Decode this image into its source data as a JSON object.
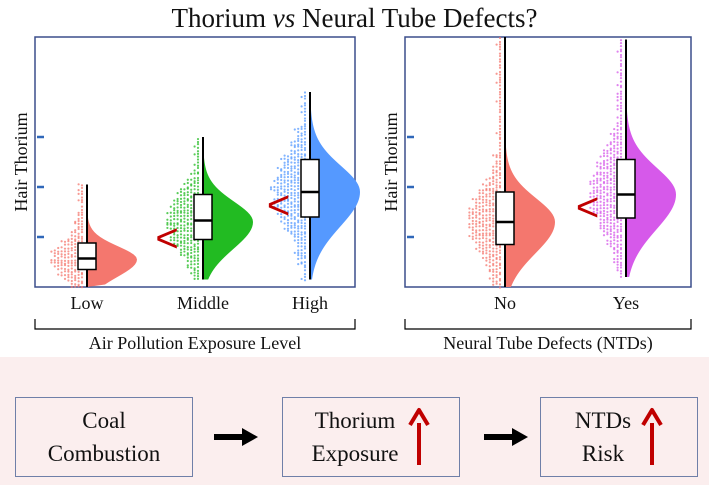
{
  "title": {
    "prefix": "Thorium ",
    "vs": "vs",
    "suffix": " Neural Tube Defects?"
  },
  "chart_data": [
    {
      "type": "raincloud",
      "ylabel": "Hair Thorium",
      "xlabel": "Air Pollution Exposure Level",
      "categories": [
        "Low",
        "Middle",
        "High"
      ],
      "ylim": [
        0,
        5
      ],
      "yticks": [
        1,
        2,
        3
      ],
      "colors": [
        "#f4776e",
        "#22bb22",
        "#5599ff"
      ],
      "boxes": [
        {
          "q1": 0.35,
          "median": 0.57,
          "q3": 0.88,
          "min": 0.0,
          "max": 2.05,
          "peak": 0.55
        },
        {
          "q1": 0.95,
          "median": 1.33,
          "q3": 1.85,
          "min": 0.15,
          "max": 3.0,
          "peak": 1.3
        },
        {
          "q1": 1.4,
          "median": 1.9,
          "q3": 2.55,
          "min": 0.15,
          "max": 3.9,
          "peak": 1.9
        }
      ],
      "comparisons": [
        "<",
        "<"
      ]
    },
    {
      "type": "raincloud",
      "ylabel": "Hair Thorium",
      "xlabel": "Neural Tube Defects (NTDs)",
      "categories": [
        "No",
        "Yes"
      ],
      "ylim": [
        0,
        5
      ],
      "yticks": [
        1,
        2,
        3
      ],
      "colors": [
        "#f4776e",
        "#d659ea"
      ],
      "boxes": [
        {
          "q1": 0.85,
          "median": 1.3,
          "q3": 1.9,
          "min": 0.0,
          "max": 5.0,
          "peak": 1.3
        },
        {
          "q1": 1.38,
          "median": 1.85,
          "q3": 2.55,
          "min": 0.2,
          "max": 4.95,
          "peak": 1.85
        }
      ],
      "comparisons": [
        "<"
      ]
    }
  ],
  "flow": {
    "boxes": [
      {
        "label": "Coal\nCombustion",
        "arrow": false
      },
      {
        "label": "Thorium\nExposure",
        "arrow": true
      },
      {
        "label": "NTDs\nRisk",
        "arrow": true
      }
    ],
    "arrow_color": "#c00000"
  }
}
